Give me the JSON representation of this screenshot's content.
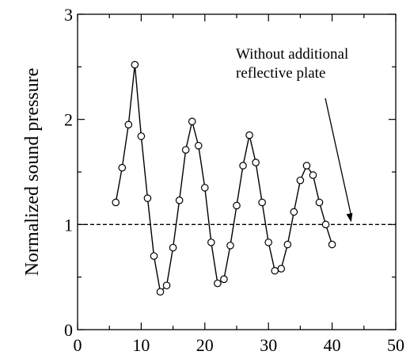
{
  "chart_data": {
    "type": "line",
    "title": "",
    "xlabel": "",
    "ylabel": "Normalized sound pressure",
    "xlim": [
      0,
      50
    ],
    "ylim": [
      0,
      3
    ],
    "xticks": [
      0,
      10,
      20,
      30,
      40,
      50
    ],
    "yticks": [
      0,
      1,
      2,
      3
    ],
    "grid": false,
    "series": [
      {
        "x": [
          6,
          7,
          8,
          9,
          10,
          11,
          12,
          13,
          14,
          15,
          16,
          17,
          18,
          19,
          20,
          21,
          22,
          23,
          24,
          25,
          26,
          27,
          28,
          29,
          30,
          31,
          32,
          33,
          34,
          35,
          36,
          37,
          38,
          39,
          40
        ],
        "y": [
          1.21,
          1.54,
          1.95,
          2.52,
          1.84,
          1.25,
          0.7,
          0.36,
          0.42,
          0.78,
          1.23,
          1.71,
          1.98,
          1.75,
          1.35,
          0.83,
          0.44,
          0.48,
          0.8,
          1.18,
          1.56,
          1.85,
          1.59,
          1.21,
          0.83,
          0.56,
          0.58,
          0.81,
          1.12,
          1.42,
          1.56,
          1.47,
          1.21,
          1.0,
          0.81
        ],
        "marker": "open-circle",
        "color": "#000000"
      }
    ],
    "reference_line": {
      "y": 1.0,
      "style": "dashed",
      "annotation": [
        "Without additional",
        "reflective plate"
      ],
      "arrow_to_x": 43
    }
  }
}
